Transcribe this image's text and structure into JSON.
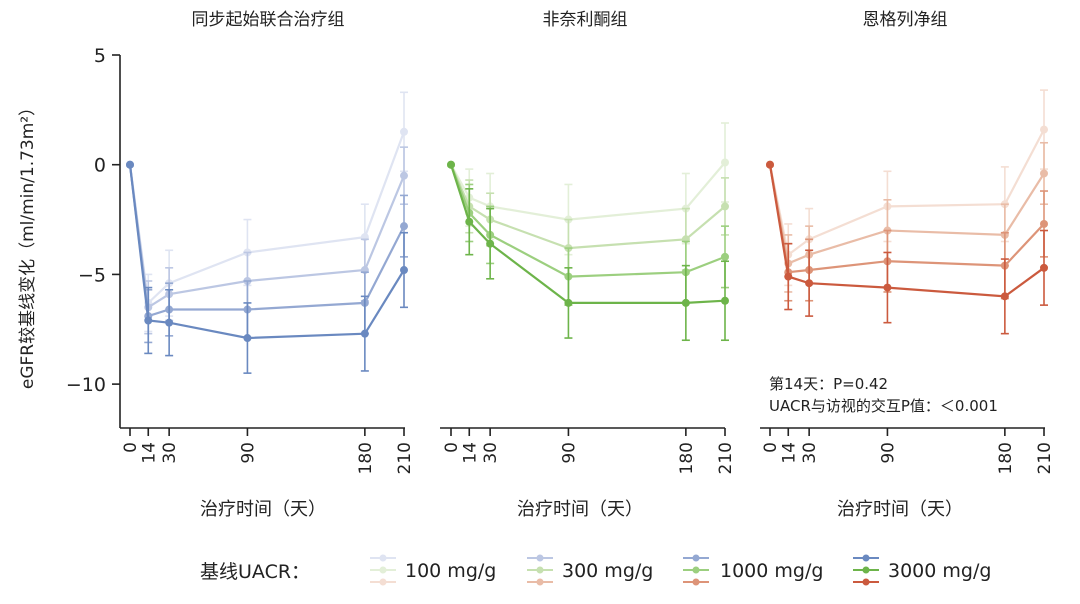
{
  "chart_data": {
    "type": "line",
    "ylabel": "eGFR较基线变化（ml/min/1.73m²）",
    "xlabel": "治疗时间（天）",
    "ylim": [
      -12,
      5
    ],
    "y_ticks": [
      5,
      0,
      -5,
      -10
    ],
    "x_ticks": [
      0,
      14,
      30,
      90,
      180,
      210
    ],
    "legend": {
      "title": "基线UACR：",
      "entries": [
        "100 mg/g",
        "300 mg/g",
        "1000 mg/g",
        "3000 mg/g"
      ],
      "placement": "bottom"
    },
    "annotation": [
      "第14天：P=0.42",
      "UACR与访视的交互P值：＜0.001"
    ],
    "panels": [
      {
        "title": "同步起始联合治疗组",
        "colors": [
          "#dfe4f2",
          "#bcc7e3",
          "#94a8d2",
          "#6a89c0"
        ],
        "series": [
          {
            "name": "100 mg/g",
            "x": [
              0,
              14,
              30,
              90,
              180,
              210
            ],
            "y": [
              0,
              -6.3,
              -5.4,
              -4.0,
              -3.3,
              1.5
            ],
            "err": [
              0,
              1.3,
              1.5,
              1.5,
              1.5,
              1.8
            ]
          },
          {
            "name": "300 mg/g",
            "x": [
              0,
              14,
              30,
              90,
              180,
              210
            ],
            "y": [
              0,
              -6.5,
              -5.9,
              -5.3,
              -4.8,
              -0.5
            ],
            "err": [
              0,
              1.2,
              1.2,
              1.3,
              1.4,
              1.3
            ]
          },
          {
            "name": "1000 mg/g",
            "x": [
              0,
              14,
              30,
              90,
              180,
              210
            ],
            "y": [
              0,
              -6.9,
              -6.6,
              -6.6,
              -6.3,
              -2.8
            ],
            "err": [
              0,
              1.2,
              1.2,
              1.3,
              1.4,
              1.4
            ]
          },
          {
            "name": "3000 mg/g",
            "x": [
              0,
              14,
              30,
              90,
              180,
              210
            ],
            "y": [
              0,
              -7.1,
              -7.2,
              -7.9,
              -7.7,
              -4.8
            ],
            "err": [
              0,
              1.5,
              1.5,
              1.6,
              1.7,
              1.7
            ]
          }
        ]
      },
      {
        "title": "非奈利酮组",
        "colors": [
          "#e3efd8",
          "#c6e0b0",
          "#9ccf7f",
          "#6db44a"
        ],
        "series": [
          {
            "name": "100 mg/g",
            "x": [
              0,
              14,
              30,
              90,
              180,
              210
            ],
            "y": [
              0,
              -1.5,
              -1.9,
              -2.5,
              -2.0,
              0.1
            ],
            "err": [
              0,
              1.3,
              1.5,
              1.6,
              1.6,
              1.8
            ]
          },
          {
            "name": "300 mg/g",
            "x": [
              0,
              14,
              30,
              90,
              180,
              210
            ],
            "y": [
              0,
              -1.9,
              -2.5,
              -3.8,
              -3.4,
              -1.9
            ],
            "err": [
              0,
              1.2,
              1.2,
              1.3,
              1.4,
              1.3
            ]
          },
          {
            "name": "1000 mg/g",
            "x": [
              0,
              14,
              30,
              90,
              180,
              210
            ],
            "y": [
              0,
              -2.2,
              -3.2,
              -5.1,
              -4.9,
              -4.2
            ],
            "err": [
              0,
              1.3,
              1.3,
              1.3,
              1.4,
              1.4
            ]
          },
          {
            "name": "3000 mg/g",
            "x": [
              0,
              14,
              30,
              90,
              180,
              210
            ],
            "y": [
              0,
              -2.6,
              -3.6,
              -6.3,
              -6.3,
              -6.2
            ],
            "err": [
              0,
              1.5,
              1.6,
              1.6,
              1.7,
              1.8
            ]
          }
        ]
      },
      {
        "title": "恩格列净组",
        "colors": [
          "#f4ded3",
          "#e9bca7",
          "#dd9478",
          "#cb5a3e"
        ],
        "series": [
          {
            "name": "100 mg/g",
            "x": [
              0,
              14,
              30,
              90,
              180,
              210
            ],
            "y": [
              0,
              -4.1,
              -3.4,
              -1.9,
              -1.8,
              1.6
            ],
            "err": [
              0,
              1.4,
              1.4,
              1.6,
              1.7,
              1.8
            ]
          },
          {
            "name": "300 mg/g",
            "x": [
              0,
              14,
              30,
              90,
              180,
              210
            ],
            "y": [
              0,
              -4.5,
              -4.1,
              -3.0,
              -3.2,
              -0.4
            ],
            "err": [
              0,
              1.3,
              1.3,
              1.4,
              1.4,
              1.4
            ]
          },
          {
            "name": "1000 mg/g",
            "x": [
              0,
              14,
              30,
              90,
              180,
              210
            ],
            "y": [
              0,
              -4.9,
              -4.8,
              -4.4,
              -4.6,
              -2.7
            ],
            "err": [
              0,
              1.3,
              1.4,
              1.4,
              1.5,
              1.5
            ]
          },
          {
            "name": "3000 mg/g",
            "x": [
              0,
              14,
              30,
              90,
              180,
              210
            ],
            "y": [
              0,
              -5.1,
              -5.4,
              -5.6,
              -6.0,
              -4.7
            ],
            "err": [
              0,
              1.5,
              1.5,
              1.6,
              1.7,
              1.7
            ]
          }
        ]
      }
    ]
  }
}
